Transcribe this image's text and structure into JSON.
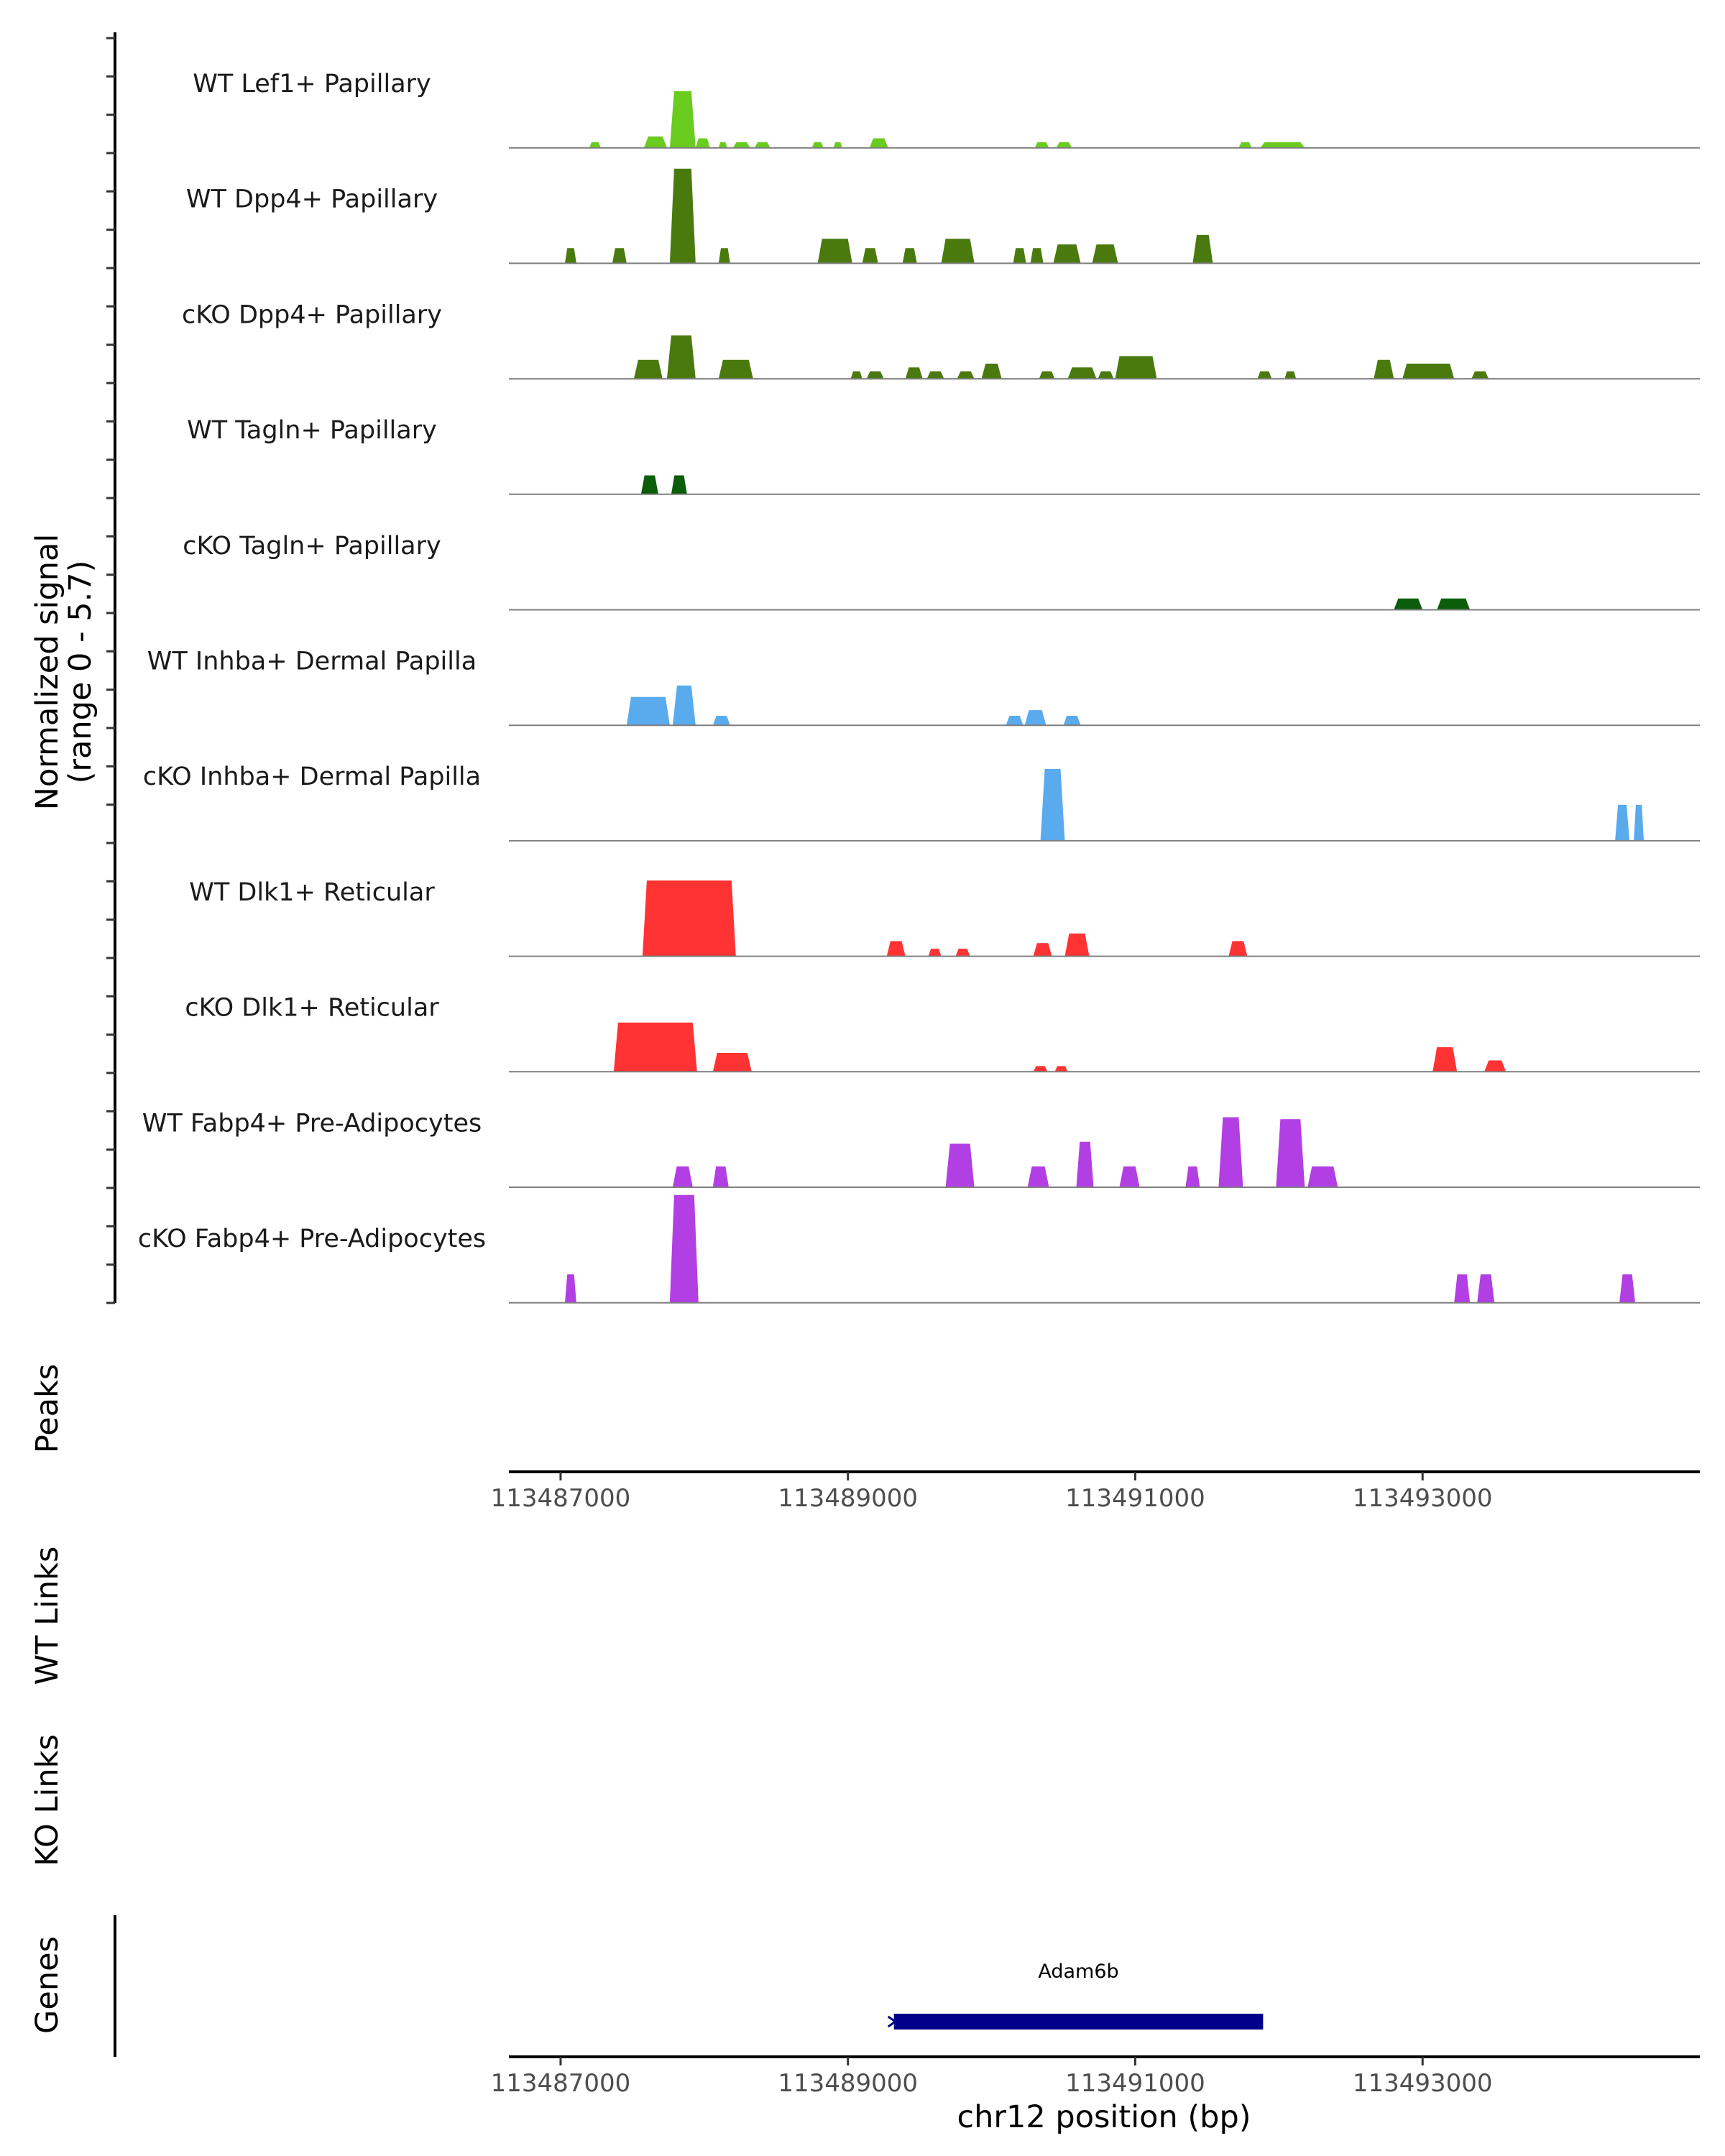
{
  "chart_data": {
    "type": "area",
    "region": {
      "chrom": "chr12",
      "start": 113486640,
      "end": 113494930
    },
    "xlabel": "chr12 position (bp)",
    "x_ticks": [
      113487000,
      113489000,
      113491000,
      113493000
    ],
    "x_tick_labels": [
      "113487000",
      "113489000",
      "113491000",
      "113493000"
    ],
    "coverage_ylabel": "Normalized signal",
    "coverage_range_label": "(range 0 - 5.7)",
    "ylim": [
      0,
      5.7
    ],
    "panel_labels": {
      "peaks": "Peaks",
      "wt_links": "WT Links",
      "ko_links": "KO Links",
      "genes": "Genes"
    },
    "tracks": [
      {
        "name": "WT Lef1+ Papillary",
        "color": "#6ACC1E",
        "peaks": [
          [
            113487200,
            113487280,
            0.3
          ],
          [
            113487580,
            113487740,
            0.6
          ],
          [
            113487760,
            113487940,
            3.0
          ],
          [
            113487940,
            113488040,
            0.5
          ],
          [
            113488100,
            113488160,
            0.3
          ],
          [
            113488200,
            113488320,
            0.3
          ],
          [
            113488350,
            113488460,
            0.3
          ],
          [
            113488750,
            113488830,
            0.3
          ],
          [
            113488900,
            113488960,
            0.3
          ],
          [
            113489150,
            113489280,
            0.5
          ],
          [
            113490300,
            113490400,
            0.3
          ],
          [
            113490450,
            113490560,
            0.3
          ],
          [
            113491720,
            113491810,
            0.3
          ],
          [
            113491870,
            113492180,
            0.3
          ]
        ]
      },
      {
        "name": "WT Dpp4+ Papillary",
        "color": "#4A7A0E",
        "peaks": [
          [
            113487030,
            113487110,
            0.8
          ],
          [
            113487360,
            113487460,
            0.8
          ],
          [
            113487760,
            113487940,
            5.0
          ],
          [
            113488100,
            113488180,
            0.8
          ],
          [
            113488790,
            113489030,
            1.3
          ],
          [
            113489100,
            113489210,
            0.8
          ],
          [
            113489380,
            113489480,
            0.8
          ],
          [
            113489650,
            113489880,
            1.3
          ],
          [
            113490150,
            113490240,
            0.8
          ],
          [
            113490270,
            113490360,
            0.8
          ],
          [
            113490430,
            113490620,
            1.0
          ],
          [
            113490700,
            113490880,
            1.0
          ],
          [
            113491400,
            113491540,
            1.5
          ]
        ]
      },
      {
        "name": "cKO Dpp4+ Papillary",
        "color": "#4A7A0E",
        "peaks": [
          [
            113487510,
            113487710,
            1.0
          ],
          [
            113487740,
            113487940,
            2.3
          ],
          [
            113488100,
            113488340,
            1.0
          ],
          [
            113489020,
            113489100,
            0.4
          ],
          [
            113489130,
            113489250,
            0.4
          ],
          [
            113489400,
            113489520,
            0.6
          ],
          [
            113489550,
            113489670,
            0.4
          ],
          [
            113489760,
            113489880,
            0.4
          ],
          [
            113489930,
            113490070,
            0.8
          ],
          [
            113490330,
            113490440,
            0.4
          ],
          [
            113490530,
            113490730,
            0.6
          ],
          [
            113490740,
            113490850,
            0.4
          ],
          [
            113490860,
            113491150,
            1.2
          ],
          [
            113491850,
            113491950,
            0.4
          ],
          [
            113492040,
            113492120,
            0.4
          ],
          [
            113492660,
            113492800,
            1.0
          ],
          [
            113492860,
            113493220,
            0.8
          ],
          [
            113493340,
            113493460,
            0.4
          ]
        ]
      },
      {
        "name": "WT Tagln+ Papillary",
        "color": "#0B5C0B",
        "peaks": [
          [
            113487560,
            113487680,
            1.0
          ],
          [
            113487770,
            113487880,
            1.0
          ]
        ]
      },
      {
        "name": "cKO Tagln+ Papillary",
        "color": "#0B5C0B",
        "peaks": [
          [
            113492800,
            113493000,
            0.6
          ],
          [
            113493100,
            113493330,
            0.6
          ]
        ]
      },
      {
        "name": "WT Inhba+ Dermal Papilla",
        "color": "#5AAAEE",
        "peaks": [
          [
            113487460,
            113487760,
            1.5
          ],
          [
            113487780,
            113487940,
            2.1
          ],
          [
            113488060,
            113488180,
            0.5
          ],
          [
            113490100,
            113490220,
            0.5
          ],
          [
            113490230,
            113490380,
            0.8
          ],
          [
            113490500,
            113490620,
            0.5
          ]
        ]
      },
      {
        "name": "cKO Inhba+ Dermal Papilla",
        "color": "#5AAAEE",
        "peaks": [
          [
            113490340,
            113490510,
            3.8
          ],
          [
            113494340,
            113494440,
            1.9
          ],
          [
            113494470,
            113494540,
            1.9
          ]
        ]
      },
      {
        "name": "WT Dlk1+ Reticular",
        "color": "#FF3333",
        "peaks": [
          [
            113487570,
            113488220,
            4.0
          ],
          [
            113489270,
            113489400,
            0.8
          ],
          [
            113489560,
            113489650,
            0.4
          ],
          [
            113489750,
            113489850,
            0.4
          ],
          [
            113490290,
            113490420,
            0.7
          ],
          [
            113490510,
            113490680,
            1.2
          ],
          [
            113491650,
            113491780,
            0.8
          ]
        ]
      },
      {
        "name": "cKO Dlk1+ Reticular",
        "color": "#FF3333",
        "peaks": [
          [
            113487370,
            113487950,
            2.6
          ],
          [
            113488060,
            113488330,
            1.0
          ],
          [
            113490290,
            113490390,
            0.3
          ],
          [
            113490440,
            113490530,
            0.3
          ],
          [
            113493070,
            113493240,
            1.3
          ],
          [
            113493430,
            113493580,
            0.6
          ]
        ]
      },
      {
        "name": "WT Fabp4+ Pre-Adipocytes",
        "color": "#B23FE3",
        "peaks": [
          [
            113487780,
            113487920,
            1.1
          ],
          [
            113488060,
            113488170,
            1.1
          ],
          [
            113489680,
            113489880,
            2.3
          ],
          [
            113490250,
            113490400,
            1.1
          ],
          [
            113490590,
            113490710,
            2.4
          ],
          [
            113490890,
            113491030,
            1.1
          ],
          [
            113491350,
            113491450,
            1.1
          ],
          [
            113491580,
            113491750,
            3.7
          ],
          [
            113491980,
            113492180,
            3.6
          ],
          [
            113492200,
            113492410,
            1.1
          ]
        ]
      },
      {
        "name": "cKO Fabp4+ Pre-Adipocytes",
        "color": "#B23FE3",
        "peaks": [
          [
            113487030,
            113487110,
            1.5
          ],
          [
            113487760,
            113487960,
            5.7
          ],
          [
            113493220,
            113493330,
            1.5
          ],
          [
            113493380,
            113493500,
            1.5
          ],
          [
            113494370,
            113494480,
            1.5
          ]
        ]
      }
    ],
    "genes": [
      {
        "name": "Adam6b",
        "start": 113489320,
        "end": 113491890,
        "strand": "-"
      }
    ]
  }
}
